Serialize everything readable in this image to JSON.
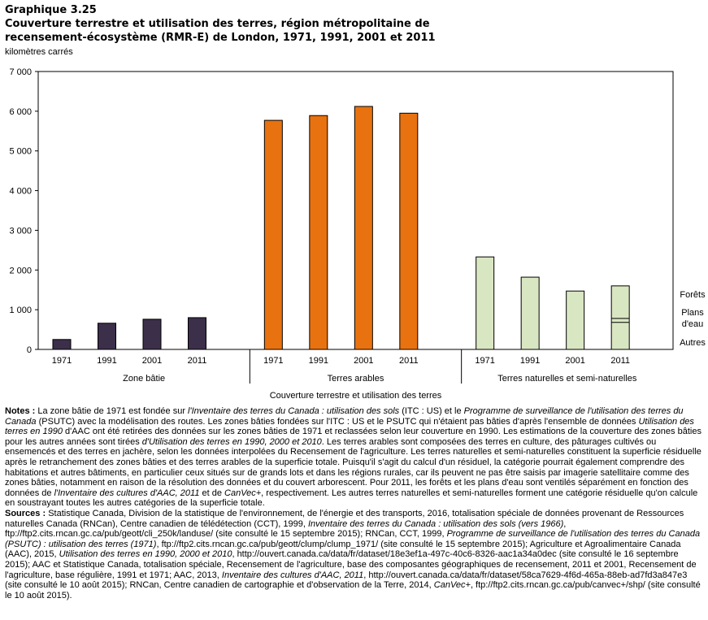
{
  "header": {
    "line1": "Graphique 3.25",
    "line2": "Couverture terrestre et utilisation des terres, région métropolitaine de",
    "line3": "recensement-écosystème (RMR-E) de London, 1971, 1991, 2001 et 2011"
  },
  "chart_data": {
    "type": "bar",
    "title": "Couverture terrestre et utilisation des terres, région métropolitaine de recensement-écosystème (RMR-E) de London, 1971, 1991, 2001 et 2011",
    "ylabel": "kilomètres carrés",
    "xlabel": "Couverture terrestre et utilisation des terres",
    "ylim": [
      0,
      7000
    ],
    "yticks": [
      0,
      1000,
      2000,
      3000,
      4000,
      5000,
      6000,
      7000
    ],
    "ytick_labels": [
      "0",
      "1 000",
      "2 000",
      "3 000",
      "4 000",
      "5 000",
      "6 000",
      "7 000"
    ],
    "groups": [
      {
        "label": "Zone bâtie",
        "color": "#3b2f4a",
        "bars": [
          {
            "year": "1971",
            "value": 250
          },
          {
            "year": "1991",
            "value": 660
          },
          {
            "year": "2001",
            "value": 760
          },
          {
            "year": "2011",
            "value": 800
          }
        ]
      },
      {
        "label": "Terres arables",
        "color": "#e8720f",
        "bars": [
          {
            "year": "1971",
            "value": 5770
          },
          {
            "year": "1991",
            "value": 5890
          },
          {
            "year": "2001",
            "value": 6120
          },
          {
            "year": "2011",
            "value": 5950
          }
        ]
      },
      {
        "label": "Terres naturelles et semi-naturelles",
        "color": "#d9e6c2",
        "bars": [
          {
            "year": "1971",
            "value": 2330
          },
          {
            "year": "1991",
            "value": 1820
          },
          {
            "year": "2001",
            "value": 1470
          },
          {
            "year": "2011",
            "value": 1600,
            "segments": [
              {
                "name": "Autres",
                "value": 680
              },
              {
                "name": "Plans d'eau",
                "value": 100
              },
              {
                "name": "Forêts",
                "value": 820
              }
            ]
          }
        ]
      }
    ],
    "segment_labels": [
      "Forêts",
      "Plans d'eau",
      "Autres"
    ]
  },
  "notes": {
    "label": "Notes :",
    "parts": [
      "La zone bâtie de 1971 est fondée sur ",
      "l'Inventaire des terres du Canada : utilisation des sols",
      " (ITC : US) et le ",
      "Programme de surveillance de l'utilisation des terres du Canada",
      " (PSUTC) avec la modélisation des routes. Les zones bâties fondées sur l'ITC : US et le PSUTC qui n'étaient pas bâties d'après l'ensemble de données ",
      "Utilisation des terres en 1990",
      " d'AAC ont été retirées des données sur les zones bâties de 1971 et reclassées selon leur couverture en 1990. Les estimations de la couverture des zones bâties pour les autres années sont tirées ",
      "d'Utilisation des terres en 1990, 2000 et 2010",
      ". Les terres arables sont composées des terres en culture, des pâturages cultivés ou ensemencés et des terres en jachère, selon les données interpolées du Recensement de l'agriculture. Les terres naturelles et semi-naturelles constituent la superficie résiduelle après le retranchement des zones bâties et des terres arables de la superficie totale. Puisqu'il s'agit du calcul d'un résiduel, la catégorie pourrait également comprendre des habitations et autres bâtiments, en particulier ceux situés sur de grands lots et dans les régions rurales, car ils peuvent ne pas être saisis par imagerie satellitaire comme des zones bâties, notamment en raison de la résolution des données et du couvert arborescent. Pour 2011, les forêts et les plans d'eau sont ventilés séparément en fonction des données de ",
      "l'Inventaire des cultures d'AAC, 2011",
      " et de ",
      "CanVec+",
      ", respectivement. Les autres terres naturelles et semi-naturelles forment une catégorie résiduelle qu'on calcule en soustrayant toutes les autres catégories de la superficie totale."
    ]
  },
  "sources": {
    "label": "Sources :",
    "parts": [
      "Statistique Canada, Division de la statistique de l'environnement, de l'énergie et des transports, 2016, totalisation spéciale de données provenant de Ressources naturelles Canada (RNCan), Centre canadien de télédétection (CCT), 1999, ",
      "Inventaire des terres du Canada : utilisation des sols (vers 1966)",
      ", ftp://ftp2.cits.rncan.gc.ca/pub/geott/cli_250k/landuse/ (site consulté le 15 septembre 2015); RNCan, CCT, 1999, ",
      "Programme de surveillance de l'utilisation des terres du Canada (PSUTC) : utilisation des terres (1971)",
      ", ftp://ftp2.cits.rncan.gc.ca/pub/geott/clump/clump_1971/ (site consulté le 15 septembre 2015); Agriculture et Agroalimentaire Canada (AAC), 2015, ",
      "Utilisation des terres en 1990, 2000 et 2010",
      ", http://ouvert.canada.ca/data/fr/dataset/18e3ef1a-497c-40c6-8326-aac1a34a0dec (site consulté le 16 septembre 2015); AAC et Statistique Canada, totalisation spéciale, Recensement de l'agriculture, base des composantes géographiques de recensement, 2011 et 2001, Recensement de l'agriculture, base régulière, 1991 et 1971; AAC, 2013, ",
      "Inventaire des cultures d'AAC, 2011",
      ", http://ouvert.canada.ca/data/fr/dataset/58ca7629-4f6d-465a-88eb-ad7fd3a847e3 (site consulté le 10 août 2015); RNCan, Centre canadien de cartographie et d'observation de la Terre, 2014, ",
      "CanVec+",
      ", ftp://ftp2.cits.rncan.gc.ca/pub/canvec+/shp/ (site consulté le 10 août 2015)."
    ]
  }
}
